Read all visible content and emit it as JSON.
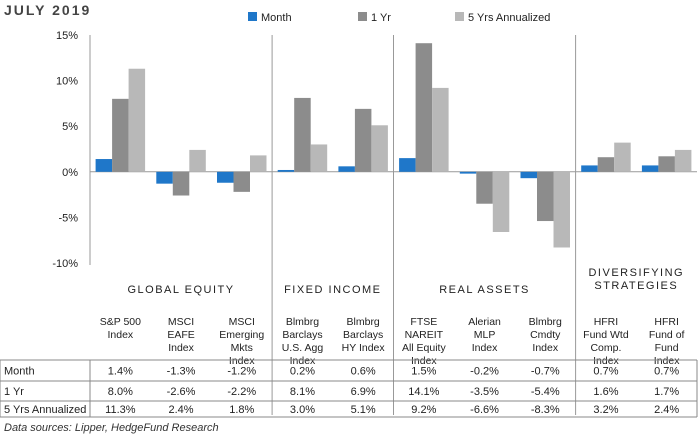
{
  "header": {
    "title": "JULY 2019"
  },
  "footnote": "Data sources: Lipper, HedgeFund Research",
  "chart_data": {
    "type": "bar",
    "ylim": [
      -10,
      15
    ],
    "yticks": [
      15,
      10,
      5,
      0,
      -5,
      -10
    ],
    "ytick_labels": [
      "15%",
      "10%",
      "5%",
      "0%",
      "-5%",
      "-10%"
    ],
    "legend": {
      "placement": "top"
    },
    "grid": false,
    "series": [
      {
        "name": "Month",
        "color": "#1f77c9",
        "values": [
          1.4,
          -1.3,
          -1.2,
          0.2,
          0.6,
          1.5,
          -0.2,
          -0.7,
          0.7,
          0.7
        ]
      },
      {
        "name": "1 Yr",
        "color": "#8c8c8c",
        "values": [
          8.0,
          -2.6,
          -2.2,
          8.1,
          6.9,
          14.1,
          -3.5,
          -5.4,
          1.6,
          1.7
        ]
      },
      {
        "name": "5 Yrs Annualized",
        "color": "#b8b8b8",
        "values": [
          11.3,
          2.4,
          1.8,
          3.0,
          5.1,
          9.2,
          -6.6,
          -8.3,
          3.2,
          2.4
        ]
      }
    ],
    "categories": [
      [
        "S&P 500",
        "Index"
      ],
      [
        "MSCI",
        "EAFE",
        "Index"
      ],
      [
        "MSCI",
        "Emerging",
        "Mkts",
        "Index"
      ],
      [
        "Blmbrg",
        "Barclays",
        "U.S. Agg",
        "Index"
      ],
      [
        "Blmbrg",
        "Barclays",
        "HY Index"
      ],
      [
        "FTSE",
        "NAREIT",
        "All Equity",
        "Index"
      ],
      [
        "Alerian",
        "MLP",
        "Index"
      ],
      [
        "Blmbrg",
        "Cmdty",
        "Index"
      ],
      [
        "HFRI",
        "Fund Wtd",
        "Comp.",
        "Index"
      ],
      [
        "HFRI",
        "Fund of",
        "Fund",
        "Index"
      ]
    ],
    "groups": [
      {
        "label": [
          "GLOBAL EQUITY"
        ],
        "count": 3
      },
      {
        "label": [
          "FIXED INCOME"
        ],
        "count": 2
      },
      {
        "label": [
          "REAL ASSETS"
        ],
        "count": 3
      },
      {
        "label": [
          "DIVERSIFYING",
          "STRATEGIES"
        ],
        "count": 2
      }
    ],
    "table": {
      "rows": [
        {
          "label": "Month",
          "cells": [
            "1.4%",
            "-1.3%",
            "-1.2%",
            "0.2%",
            "0.6%",
            "1.5%",
            "-0.2%",
            "-0.7%",
            "0.7%",
            "0.7%"
          ]
        },
        {
          "label": "1 Yr",
          "cells": [
            "8.0%",
            "-2.6%",
            "-2.2%",
            "8.1%",
            "6.9%",
            "14.1%",
            "-3.5%",
            "-5.4%",
            "1.6%",
            "1.7%"
          ]
        },
        {
          "label": "5 Yrs Annualized",
          "cells": [
            "11.3%",
            "2.4%",
            "1.8%",
            "3.0%",
            "5.1%",
            "9.2%",
            "-6.6%",
            "-8.3%",
            "3.2%",
            "2.4%"
          ]
        }
      ]
    }
  }
}
